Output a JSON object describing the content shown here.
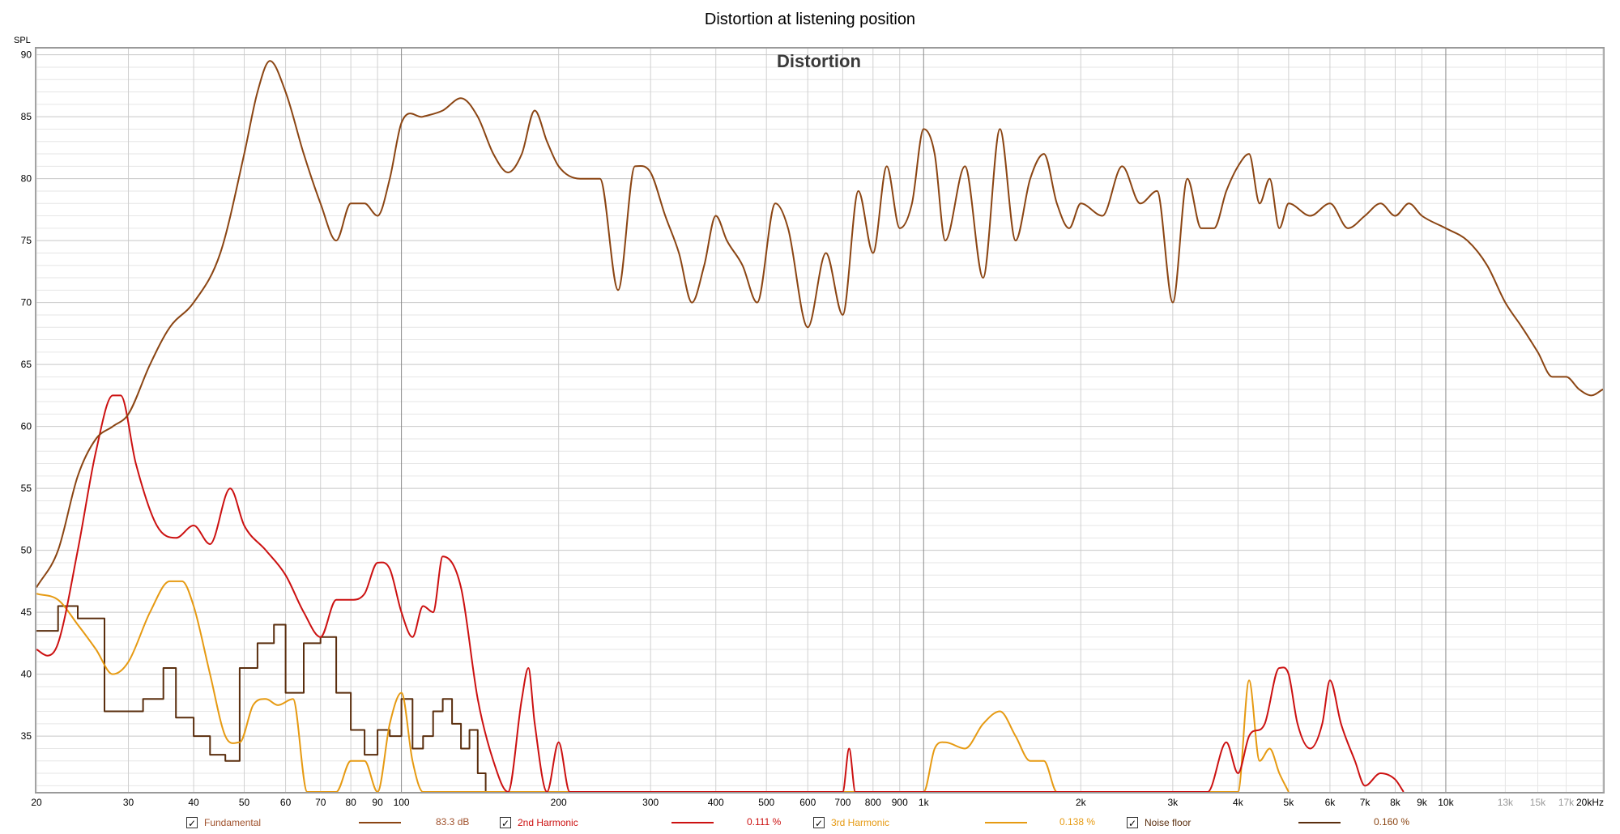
{
  "title": "Distortion at listening position",
  "chart_data": {
    "type": "line",
    "title": "Distortion",
    "ylabel": "SPL",
    "xscale": "log",
    "xlim": [
      20,
      20000
    ],
    "ylim": [
      30.5,
      90.5
    ],
    "y_ticks": [
      35,
      40,
      45,
      50,
      55,
      60,
      65,
      70,
      75,
      80,
      85,
      90
    ],
    "x_ticks": [
      {
        "f": 20,
        "label": "20"
      },
      {
        "f": 30,
        "label": "30"
      },
      {
        "f": 40,
        "label": "40"
      },
      {
        "f": 50,
        "label": "50"
      },
      {
        "f": 60,
        "label": "60"
      },
      {
        "f": 70,
        "label": "70"
      },
      {
        "f": 80,
        "label": "80"
      },
      {
        "f": 90,
        "label": "90"
      },
      {
        "f": 100,
        "label": "100"
      },
      {
        "f": 200,
        "label": "200"
      },
      {
        "f": 300,
        "label": "300"
      },
      {
        "f": 400,
        "label": "400"
      },
      {
        "f": 500,
        "label": "500"
      },
      {
        "f": 600,
        "label": "600"
      },
      {
        "f": 700,
        "label": "700"
      },
      {
        "f": 800,
        "label": "800"
      },
      {
        "f": 900,
        "label": "900"
      },
      {
        "f": 1000,
        "label": "1k"
      },
      {
        "f": 2000,
        "label": "2k"
      },
      {
        "f": 3000,
        "label": "3k"
      },
      {
        "f": 4000,
        "label": "4k"
      },
      {
        "f": 5000,
        "label": "5k"
      },
      {
        "f": 6000,
        "label": "6k"
      },
      {
        "f": 7000,
        "label": "7k"
      },
      {
        "f": 8000,
        "label": "8k"
      },
      {
        "f": 9000,
        "label": "9k"
      },
      {
        "f": 10000,
        "label": "10k"
      },
      {
        "f": 13000,
        "label": "13k",
        "faded": true
      },
      {
        "f": 15000,
        "label": "15k",
        "faded": true
      },
      {
        "f": 17000,
        "label": "17k",
        "faded": true
      },
      {
        "f": 20000,
        "label": "20kHz"
      }
    ],
    "grid": true,
    "series": [
      {
        "name": "Fundamental",
        "color": "#8b4513",
        "value_label": "83.3 dB",
        "points": [
          [
            20,
            47
          ],
          [
            22,
            50
          ],
          [
            24,
            56
          ],
          [
            26,
            59
          ],
          [
            28,
            60
          ],
          [
            30,
            61
          ],
          [
            33,
            65
          ],
          [
            36,
            68
          ],
          [
            40,
            70
          ],
          [
            45,
            74
          ],
          [
            50,
            82
          ],
          [
            53,
            87
          ],
          [
            56,
            89.5
          ],
          [
            60,
            87
          ],
          [
            65,
            82
          ],
          [
            70,
            78
          ],
          [
            75,
            75
          ],
          [
            80,
            78
          ],
          [
            85,
            78
          ],
          [
            90,
            77
          ],
          [
            95,
            80
          ],
          [
            100,
            84.5
          ],
          [
            110,
            85
          ],
          [
            120,
            85.5
          ],
          [
            130,
            86.5
          ],
          [
            140,
            85
          ],
          [
            150,
            82
          ],
          [
            160,
            80.5
          ],
          [
            170,
            82
          ],
          [
            180,
            85.5
          ],
          [
            190,
            83
          ],
          [
            200,
            81
          ],
          [
            220,
            80
          ],
          [
            240,
            80
          ],
          [
            260,
            71
          ],
          [
            280,
            81
          ],
          [
            300,
            80.5
          ],
          [
            320,
            77
          ],
          [
            340,
            74
          ],
          [
            360,
            70
          ],
          [
            380,
            73
          ],
          [
            400,
            77
          ],
          [
            420,
            75
          ],
          [
            450,
            73
          ],
          [
            480,
            70
          ],
          [
            520,
            78
          ],
          [
            550,
            76
          ],
          [
            600,
            68
          ],
          [
            650,
            74
          ],
          [
            700,
            69
          ],
          [
            750,
            79
          ],
          [
            800,
            74
          ],
          [
            850,
            81
          ],
          [
            900,
            76
          ],
          [
            950,
            78
          ],
          [
            1000,
            84
          ],
          [
            1050,
            82
          ],
          [
            1100,
            75
          ],
          [
            1200,
            81
          ],
          [
            1300,
            72
          ],
          [
            1400,
            84
          ],
          [
            1500,
            75
          ],
          [
            1600,
            80
          ],
          [
            1700,
            82
          ],
          [
            1800,
            78
          ],
          [
            1900,
            76
          ],
          [
            2000,
            78
          ],
          [
            2200,
            77
          ],
          [
            2400,
            81
          ],
          [
            2600,
            78
          ],
          [
            2800,
            79
          ],
          [
            3000,
            70
          ],
          [
            3200,
            80
          ],
          [
            3400,
            76
          ],
          [
            3600,
            76
          ],
          [
            3800,
            79
          ],
          [
            4000,
            81
          ],
          [
            4200,
            82
          ],
          [
            4400,
            78
          ],
          [
            4600,
            80
          ],
          [
            4800,
            76
          ],
          [
            5000,
            78
          ],
          [
            5500,
            77
          ],
          [
            6000,
            78
          ],
          [
            6500,
            76
          ],
          [
            7000,
            77
          ],
          [
            7500,
            78
          ],
          [
            8000,
            77
          ],
          [
            8500,
            78
          ],
          [
            9000,
            77
          ],
          [
            10000,
            76
          ],
          [
            11000,
            75
          ],
          [
            12000,
            73
          ],
          [
            13000,
            70
          ],
          [
            14000,
            68
          ],
          [
            15000,
            66
          ],
          [
            16000,
            64
          ],
          [
            17000,
            64
          ],
          [
            18000,
            63
          ],
          [
            19000,
            62.5
          ],
          [
            20000,
            63
          ]
        ]
      },
      {
        "name": "2nd Harmonic",
        "color": "#cc1111",
        "value_label": "0.111 %",
        "points": [
          [
            20,
            42
          ],
          [
            21,
            41.5
          ],
          [
            22,
            42.5
          ],
          [
            24,
            50
          ],
          [
            26,
            58
          ],
          [
            28,
            62.5
          ],
          [
            29,
            62.5
          ],
          [
            31,
            57
          ],
          [
            34,
            52
          ],
          [
            37,
            51
          ],
          [
            40,
            52
          ],
          [
            43,
            50.5
          ],
          [
            47,
            55
          ],
          [
            50,
            52
          ],
          [
            55,
            50
          ],
          [
            60,
            48
          ],
          [
            65,
            45
          ],
          [
            70,
            43
          ],
          [
            75,
            46
          ],
          [
            80,
            46
          ],
          [
            85,
            46.5
          ],
          [
            90,
            49
          ],
          [
            95,
            48.5
          ],
          [
            100,
            45
          ],
          [
            105,
            43
          ],
          [
            110,
            45.5
          ],
          [
            115,
            45
          ],
          [
            120,
            49.5
          ],
          [
            130,
            47
          ],
          [
            140,
            38
          ],
          [
            150,
            33
          ],
          [
            160,
            30.5
          ],
          [
            170,
            38
          ],
          [
            175,
            40.5
          ],
          [
            180,
            36
          ],
          [
            190,
            30.5
          ],
          [
            200,
            34.5
          ],
          [
            210,
            30.5
          ],
          [
            700,
            30.5
          ],
          [
            720,
            34
          ],
          [
            740,
            30.5
          ],
          [
            3500,
            30.5
          ],
          [
            3800,
            34.5
          ],
          [
            4000,
            32
          ],
          [
            4200,
            35
          ],
          [
            4500,
            36
          ],
          [
            4800,
            40.5
          ],
          [
            5000,
            40
          ],
          [
            5200,
            36
          ],
          [
            5500,
            34
          ],
          [
            5800,
            36
          ],
          [
            6000,
            39.5
          ],
          [
            6300,
            36
          ],
          [
            6700,
            33
          ],
          [
            7000,
            31
          ],
          [
            7500,
            32
          ],
          [
            8000,
            31.5
          ],
          [
            8300,
            30.5
          ]
        ]
      },
      {
        "name": "3rd Harmonic",
        "color": "#e69a12",
        "value_label": "0.138 %",
        "points": [
          [
            20,
            46.5
          ],
          [
            22,
            46
          ],
          [
            24,
            44
          ],
          [
            26,
            42
          ],
          [
            28,
            40
          ],
          [
            30,
            41
          ],
          [
            33,
            45
          ],
          [
            36,
            47.5
          ],
          [
            38,
            47.5
          ],
          [
            40,
            45.5
          ],
          [
            43,
            40
          ],
          [
            46,
            35
          ],
          [
            49,
            34.5
          ],
          [
            52,
            37.5
          ],
          [
            55,
            38
          ],
          [
            58,
            37.5
          ],
          [
            62,
            38
          ],
          [
            66,
            30.5
          ],
          [
            75,
            30.5
          ],
          [
            80,
            33
          ],
          [
            85,
            33
          ],
          [
            90,
            30.5
          ],
          [
            95,
            36
          ],
          [
            100,
            38.5
          ],
          [
            105,
            33
          ],
          [
            110,
            30.5
          ],
          [
            1000,
            30.5
          ],
          [
            1050,
            34
          ],
          [
            1100,
            34.5
          ],
          [
            1200,
            34
          ],
          [
            1300,
            36
          ],
          [
            1400,
            37
          ],
          [
            1500,
            35
          ],
          [
            1600,
            33
          ],
          [
            1700,
            33
          ],
          [
            1800,
            30.5
          ],
          [
            4000,
            30.5
          ],
          [
            4200,
            39.5
          ],
          [
            4400,
            33
          ],
          [
            4600,
            34
          ],
          [
            4800,
            32
          ],
          [
            5000,
            30.5
          ]
        ]
      },
      {
        "name": "Noise floor",
        "color": "#5a2e0e",
        "value_label": "0.160 %",
        "step": true,
        "points": [
          [
            20,
            43.5
          ],
          [
            22,
            45.5
          ],
          [
            24,
            44.5
          ],
          [
            27,
            37
          ],
          [
            32,
            38
          ],
          [
            35,
            40.5
          ],
          [
            37,
            36.5
          ],
          [
            40,
            35
          ],
          [
            43,
            33.5
          ],
          [
            46,
            33
          ],
          [
            49,
            40.5
          ],
          [
            53,
            42.5
          ],
          [
            57,
            44
          ],
          [
            60,
            38.5
          ],
          [
            65,
            42.5
          ],
          [
            70,
            43
          ],
          [
            75,
            38.5
          ],
          [
            80,
            35.5
          ],
          [
            85,
            33.5
          ],
          [
            90,
            35.5
          ],
          [
            95,
            35
          ],
          [
            100,
            38
          ],
          [
            105,
            34
          ],
          [
            110,
            35
          ],
          [
            115,
            37
          ],
          [
            120,
            38
          ],
          [
            125,
            36
          ],
          [
            130,
            34
          ],
          [
            135,
            35.5
          ],
          [
            140,
            32
          ],
          [
            145,
            30.5
          ]
        ]
      }
    ]
  },
  "legend": [
    {
      "label": "Fundamental",
      "value": "83.3 dB",
      "color": "#8b4513",
      "checked": "✓"
    },
    {
      "label": "2nd Harmonic",
      "value": "0.111 %",
      "color": "#cc1111",
      "checked": "✓"
    },
    {
      "label": "3rd Harmonic",
      "value": "0.138 %",
      "color": "#e69a12",
      "checked": "✓"
    },
    {
      "label": "Noise floor",
      "value": "0.160 %",
      "color": "#5a2e0e",
      "checked": "✓"
    }
  ]
}
